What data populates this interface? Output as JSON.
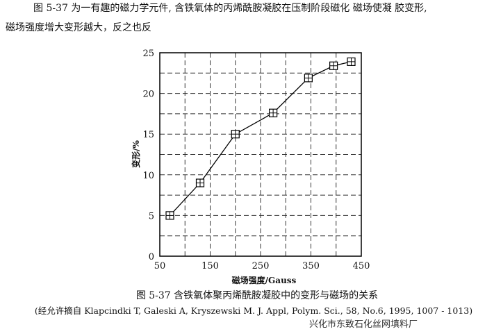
{
  "paragraph": [
    "图 5-37 为一有趣的磁力学元件, 含铁氧体的丙烯酰胺凝胶在压制阶段磁化 磁场使凝 胶变形,",
    "磁场强度增大变形越大，反之也反"
  ],
  "chart_data": {
    "type": "line",
    "x_label": "磁场强度/Gauss",
    "y_label": "变形/%",
    "series": [
      {
        "x": [
          70,
          130,
          200,
          275,
          345,
          395,
          430
        ],
        "values": [
          5,
          9,
          15,
          17.6,
          21.9,
          23.4,
          23.9
        ],
        "color": "#000000",
        "marker": "square-cross"
      }
    ],
    "xlim": [
      50,
      450
    ],
    "ylim": [
      0,
      25
    ],
    "xticks": [
      50,
      150,
      250,
      350,
      450
    ],
    "yticks": [
      0,
      5,
      10,
      15,
      20,
      25
    ],
    "x_minor_ticks": [
      100,
      200,
      300,
      400
    ],
    "y_minor_ticks": [
      2.5,
      7.5,
      12.5,
      17.5,
      22.5
    ],
    "grid": true
  },
  "caption": "图 5-37 含铁氧体聚丙烯酰胺凝胶中的变形与磁场的关系",
  "source": "(经允许摘自 Klapcindki T, Galeski A, Kryszewski M. J. Appl, Polym. Sci., 58, No.6, 1995, 1007 - 1013)",
  "watermark": "兴化市东致石化丝网填料厂"
}
